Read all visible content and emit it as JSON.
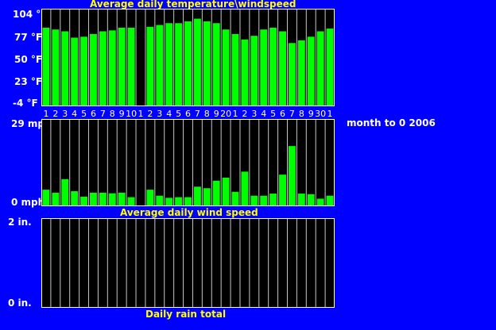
{
  "note": "month to 0 2006",
  "chart_data": [
    {
      "type": "bar",
      "title": "Average daily temperature\\windspeed",
      "ylim": [
        -4,
        104
      ],
      "y_ticks": [
        "104 °F",
        "77 °F",
        "50 °F",
        "23 °F",
        "-4 °F"
      ],
      "categories": [
        "1",
        "2",
        "3",
        "4",
        "5",
        "6",
        "7",
        "8",
        "9",
        "10",
        "1",
        "2",
        "3",
        "4",
        "5",
        "6",
        "7",
        "8",
        "9",
        "20",
        "1",
        "2",
        "3",
        "4",
        "5",
        "6",
        "7",
        "8",
        "9",
        "30",
        "1"
      ],
      "x_tick_labels": [
        "1",
        "2",
        "3",
        "4",
        "5",
        "6",
        "7",
        "8",
        "9",
        "10",
        "1",
        "2",
        "3",
        "4",
        "5",
        "6",
        "7",
        "8",
        "9",
        "20",
        "1",
        "2",
        "3",
        "4",
        "5",
        "6",
        "7",
        "8",
        "9",
        "30",
        "1"
      ],
      "values": [
        83,
        81,
        79,
        72,
        73,
        76,
        79,
        80,
        83,
        83,
        null,
        84,
        86,
        88,
        88,
        90,
        93,
        90,
        88,
        81,
        76,
        70,
        74,
        81,
        83,
        79,
        66,
        69,
        73,
        79,
        82
      ],
      "color": "#00ff00",
      "grid": true
    },
    {
      "type": "bar",
      "title": "Average daily wind speed",
      "ylim": [
        0,
        29
      ],
      "y_ticks": [
        "29 mph",
        "0 mph"
      ],
      "categories": [
        "1",
        "2",
        "3",
        "4",
        "5",
        "6",
        "7",
        "8",
        "9",
        "10",
        "1",
        "2",
        "3",
        "4",
        "5",
        "6",
        "7",
        "8",
        "9",
        "20",
        "1",
        "2",
        "3",
        "4",
        "5",
        "6",
        "7",
        "8",
        "9",
        "30",
        "1"
      ],
      "values": [
        5.5,
        4.5,
        9,
        5,
        3.2,
        4.5,
        4.5,
        4.3,
        4.5,
        3,
        0,
        5.5,
        3.5,
        2.8,
        3,
        3,
        6.5,
        6,
        8.5,
        9.5,
        4.8,
        11.5,
        3.5,
        3.5,
        4.2,
        10.5,
        20,
        4.2,
        4,
        2.5,
        3.5
      ],
      "color": "#00ff00",
      "grid": true
    },
    {
      "type": "bar",
      "title": "Daily rain total",
      "ylim": [
        0,
        2
      ],
      "y_ticks": [
        "2 in.",
        "0 in."
      ],
      "categories": [
        "1",
        "2",
        "3",
        "4",
        "5",
        "6",
        "7",
        "8",
        "9",
        "10",
        "1",
        "2",
        "3",
        "4",
        "5",
        "6",
        "7",
        "8",
        "9",
        "20",
        "1",
        "2",
        "3",
        "4",
        "5",
        "6",
        "7",
        "8",
        "9",
        "30",
        "1"
      ],
      "values": [
        0,
        0,
        0,
        0,
        0,
        0,
        0,
        0,
        0,
        0,
        0,
        0,
        0,
        0,
        0,
        0,
        0,
        0,
        0,
        0,
        0,
        0.02,
        0,
        0,
        0,
        0,
        0,
        0,
        0,
        0,
        0
      ],
      "color": "#00ff00",
      "grid": true
    }
  ]
}
